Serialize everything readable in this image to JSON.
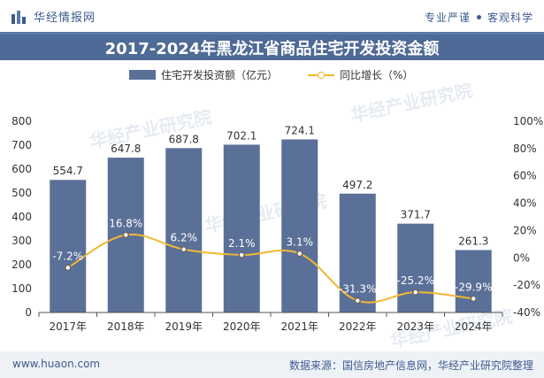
{
  "header": {
    "brand_name": "华经情报网",
    "tagline_left": "专业严谨",
    "tagline_right": "客观科学"
  },
  "title": "2017-2024年黑龙江省商品住宅开发投资金额",
  "legend": {
    "bar_label": "住宅开发投资额（亿元）",
    "line_label": "同比增长（%）"
  },
  "watermark_text": "华经产业研究院",
  "footer": {
    "url": "www.huaon.com",
    "source": "数据来源：国信房地产信息网，华经产业研究院整理"
  },
  "colors": {
    "bar": "#5b7098",
    "line": "#f0b932",
    "title_bg": "#4e6a96",
    "brand": "#3b5b8e"
  },
  "chart_data": {
    "type": "bar",
    "categories": [
      "2017年",
      "2018年",
      "2019年",
      "2020年",
      "2021年",
      "2022年",
      "2023年",
      "2024年"
    ],
    "series": [
      {
        "name": "住宅开发投资额（亿元）",
        "type": "bar",
        "axis": "left",
        "values": [
          554.7,
          647.8,
          687.8,
          702.1,
          724.1,
          497.2,
          371.7,
          261.3
        ],
        "labels": [
          "554.7",
          "647.8",
          "687.8",
          "702.1",
          "724.1",
          "497.2",
          "371.7",
          "261.3"
        ]
      },
      {
        "name": "同比增长（%）",
        "type": "line",
        "axis": "right",
        "values": [
          -7.2,
          16.8,
          6.2,
          2.1,
          3.1,
          -31.3,
          -25.2,
          -29.9
        ],
        "labels": [
          "-7.2%",
          "16.8%",
          "6.2%",
          "2.1%",
          "3.1%",
          "-31.3%",
          "-25.2%",
          "-29.9%"
        ]
      }
    ],
    "y_left": {
      "min": 0,
      "max": 800,
      "ticks": [
        "0",
        "100",
        "200",
        "300",
        "400",
        "500",
        "600",
        "700",
        "800"
      ]
    },
    "y_right": {
      "min": -40,
      "max": 100,
      "ticks": [
        "-40%",
        "-20%",
        "0%",
        "20%",
        "40%",
        "60%",
        "80%",
        "100%"
      ]
    },
    "grid": false,
    "legend_position": "top-center"
  }
}
